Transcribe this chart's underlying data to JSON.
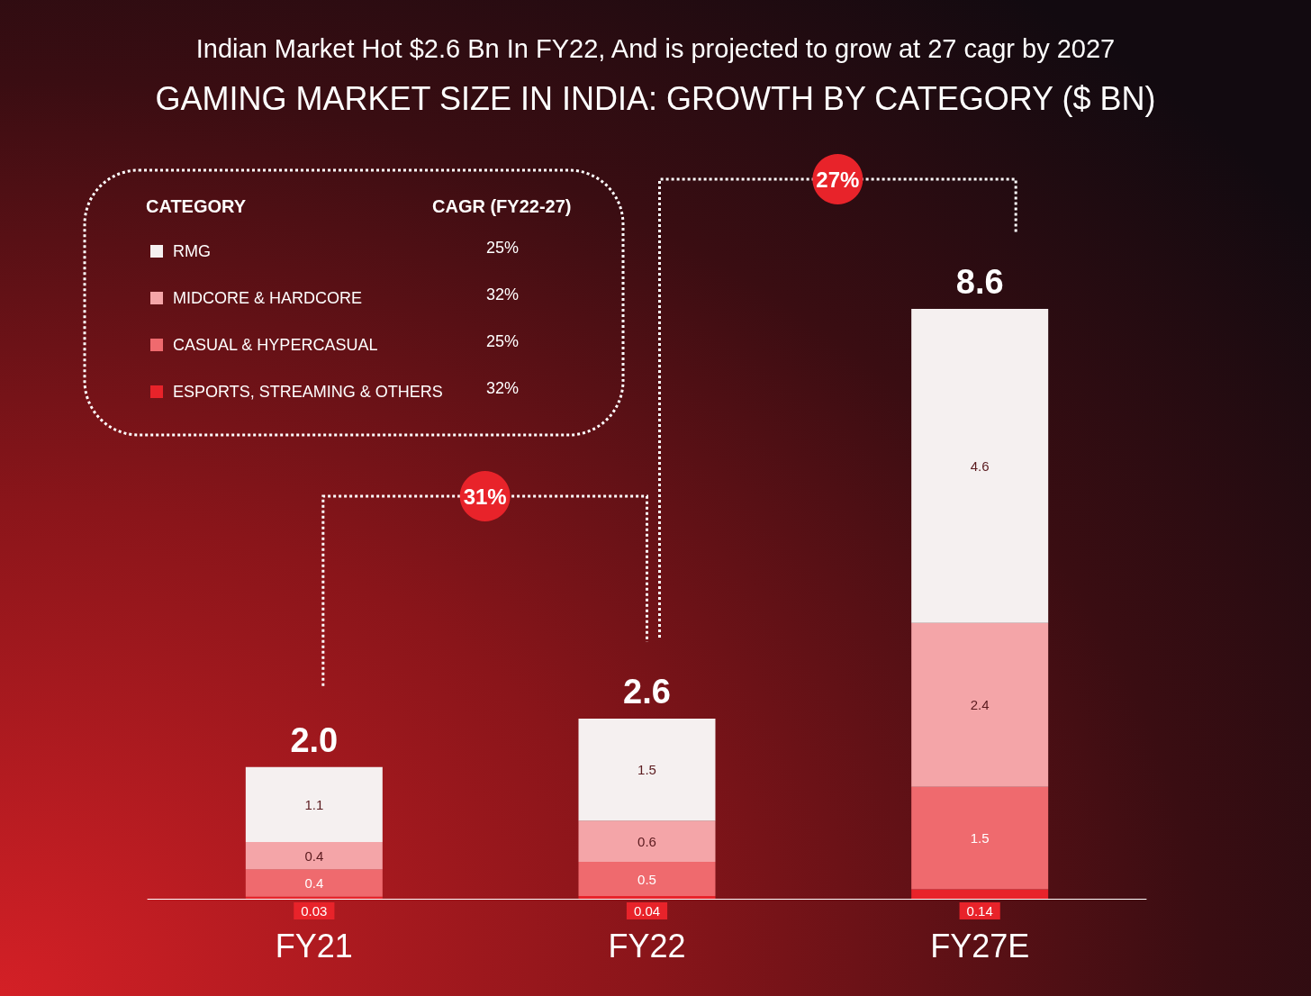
{
  "chart_data": {
    "type": "bar",
    "title": "GAMING MARKET SIZE IN INDIA: GROWTH BY CATEGORY ($ BN)",
    "subtitle": "Indian Market Hot $2.6 Bn In FY22, And is projected to grow at 27 cagr by 2027",
    "legend_title": "CATEGORY",
    "categories": [
      "FY21",
      "FY22",
      "FY27E"
    ],
    "series": [
      {
        "name": "ESPORTS, STREAMING & OTHERS",
        "color": "#e8232a",
        "values": [
          0.03,
          0.04,
          0.14
        ]
      },
      {
        "name": "CASUAL & HYPERCASUAL",
        "color": "#ef6a6e",
        "values": [
          0.4,
          0.5,
          1.5
        ]
      },
      {
        "name": "MIDCORE & HARDCORE",
        "color": "#f4a5a8",
        "values": [
          0.4,
          0.6,
          2.4
        ]
      },
      {
        "name": "RMG",
        "color": "#f5f0f0",
        "values": [
          1.1,
          1.5,
          4.6
        ]
      }
    ],
    "stacked": true,
    "data_labels": true,
    "totals": [
      "2.0",
      "2.6",
      "8.6"
    ],
    "legend": "top left",
    "grid": false,
    "annotations": [
      "CAGR (FY22-27)",
      "25%",
      "32%",
      "25%",
      "32%",
      "31%",
      "27%"
    ]
  }
}
